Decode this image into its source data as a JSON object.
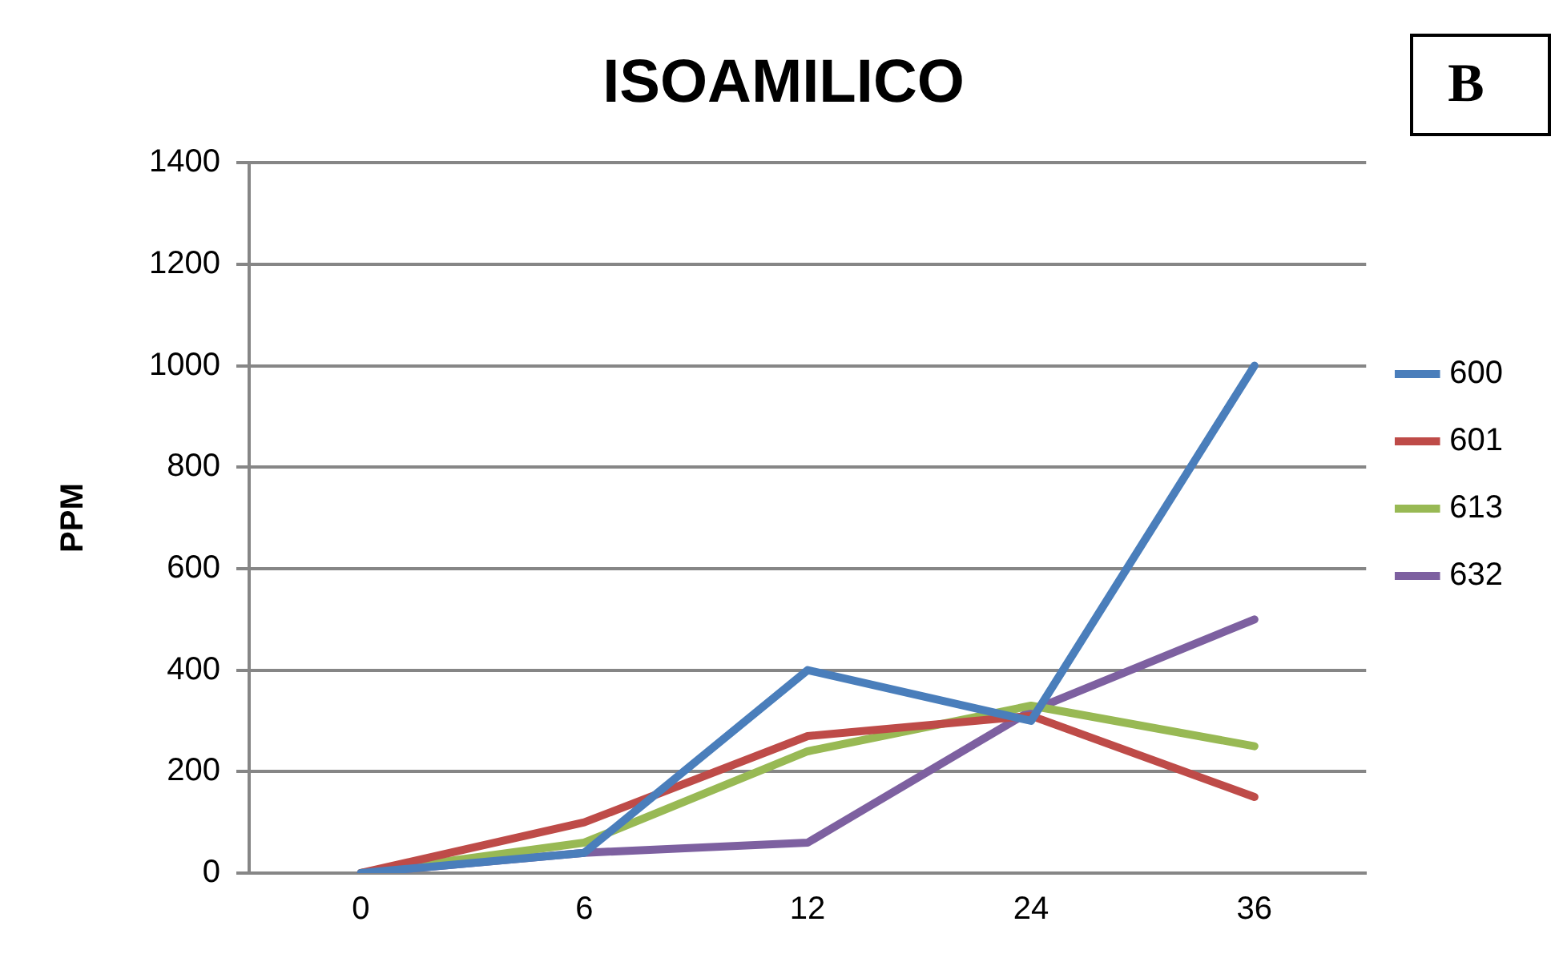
{
  "chart_data": {
    "type": "line",
    "title": "ISOAMILICO",
    "ylabel": "PPM",
    "annotations": [
      "B"
    ],
    "categories": [
      "0",
      "6",
      "12",
      "24",
      "36"
    ],
    "series": [
      {
        "name": "600",
        "color": "#4a7ebb",
        "values": [
          0,
          40,
          400,
          300,
          1000
        ]
      },
      {
        "name": "601",
        "color": "#be4b48",
        "values": [
          0,
          100,
          270,
          310,
          150
        ]
      },
      {
        "name": "613",
        "color": "#98b954",
        "values": [
          0,
          60,
          240,
          330,
          250
        ]
      },
      {
        "name": "632",
        "color": "#7d60a0",
        "values": [
          0,
          40,
          60,
          320,
          500
        ]
      }
    ],
    "ylim": [
      0,
      1400
    ],
    "yticks": [
      0,
      200,
      400,
      600,
      800,
      1000,
      1200,
      1400
    ],
    "grid": "y",
    "legend": "right",
    "marker": "none",
    "line_style": "solid"
  }
}
